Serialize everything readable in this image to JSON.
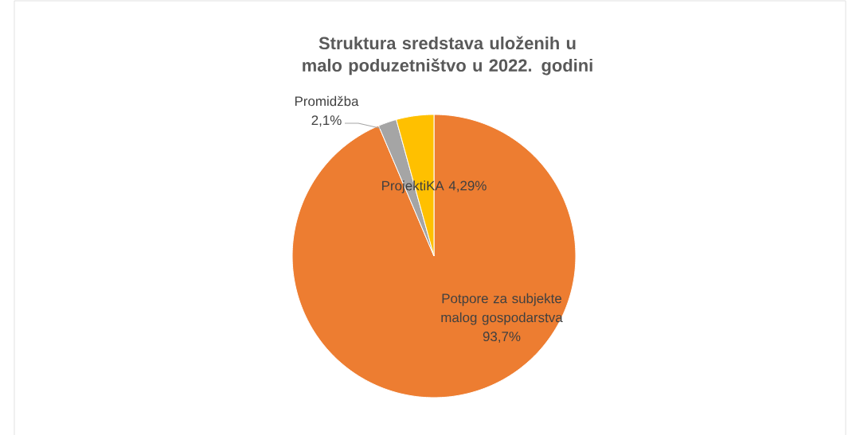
{
  "chart_data": {
    "type": "pie",
    "title": "Struktura sredstava uloženih u malo poduzetništvo u 2022. godini",
    "categories": [
      "Potpore za subjekte malog gospodarstva",
      "Promidžba",
      "ProjektiKA"
    ],
    "values": [
      93.7,
      2.1,
      4.29
    ],
    "colors": [
      "#ed7d31",
      "#a5a5a5",
      "#ffc000"
    ],
    "value_labels": [
      "93,7%",
      "2,1%",
      "4,29%"
    ]
  }
}
